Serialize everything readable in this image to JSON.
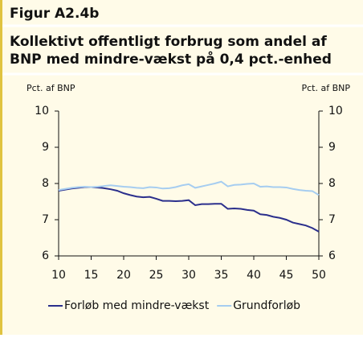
{
  "chart_data": {
    "type": "line",
    "figure_label": "Figur A2.4b",
    "title": [
      "Kollektivt offentligt forbrug som andel af",
      "BNP med mindre-vækst på 0,4 pct.-enhed"
    ],
    "y_label": "Pct. af BNP",
    "y2_label": "Pct. af BNP",
    "x": [
      10,
      11,
      12,
      13,
      14,
      15,
      16,
      17,
      18,
      19,
      20,
      21,
      22,
      23,
      24,
      25,
      26,
      27,
      28,
      29,
      30,
      31,
      32,
      33,
      34,
      35,
      36,
      37,
      38,
      39,
      40,
      41,
      42,
      43,
      44,
      45,
      46,
      47,
      48,
      49,
      50
    ],
    "series": [
      {
        "name": "Forløb med mindre-vækst",
        "color": "#2b2f8c",
        "values": [
          7.8,
          7.83,
          7.86,
          7.88,
          7.9,
          7.9,
          7.89,
          7.87,
          7.84,
          7.8,
          7.73,
          7.68,
          7.64,
          7.62,
          7.63,
          7.58,
          7.52,
          7.52,
          7.51,
          7.52,
          7.54,
          7.4,
          7.43,
          7.43,
          7.44,
          7.44,
          7.3,
          7.31,
          7.3,
          7.27,
          7.25,
          7.15,
          7.13,
          7.08,
          7.05,
          7.0,
          6.92,
          6.88,
          6.84,
          6.77,
          6.67
        ]
      },
      {
        "name": "Grundforløb",
        "color": "#a6cdf0",
        "values": [
          7.82,
          7.85,
          7.88,
          7.9,
          7.91,
          7.9,
          7.91,
          7.93,
          7.95,
          7.93,
          7.91,
          7.9,
          7.88,
          7.87,
          7.9,
          7.89,
          7.86,
          7.87,
          7.9,
          7.95,
          7.98,
          7.88,
          7.92,
          7.96,
          8.0,
          8.05,
          7.92,
          7.96,
          7.97,
          7.99,
          8.0,
          7.91,
          7.92,
          7.9,
          7.9,
          7.89,
          7.85,
          7.82,
          7.8,
          7.79,
          7.68
        ]
      }
    ],
    "xlim": [
      10,
      50
    ],
    "xticks": [
      10,
      15,
      20,
      25,
      30,
      35,
      40,
      45,
      50
    ],
    "ylim": [
      6,
      10
    ],
    "yticks": [
      6,
      7,
      8,
      9,
      10
    ],
    "y2lim": [
      6,
      10
    ],
    "y2ticks": [
      6,
      7,
      8,
      9,
      10
    ],
    "legend": "bottom"
  }
}
